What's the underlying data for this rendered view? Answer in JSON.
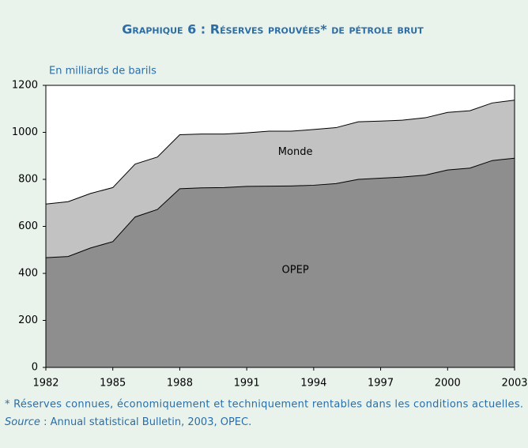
{
  "chart_data": {
    "type": "area",
    "title": "Graphique 6 : Réserves prouvées* de pétrole brut",
    "y_label": "En milliards de barils",
    "x": [
      1982,
      1983,
      1984,
      1985,
      1986,
      1987,
      1988,
      1989,
      1990,
      1991,
      1992,
      1993,
      1994,
      1995,
      1996,
      1997,
      1998,
      1999,
      2000,
      2001,
      2002,
      2003
    ],
    "series": [
      {
        "name": "Monde",
        "color": "#c2c2c2",
        "values": [
          695,
          705,
          740,
          765,
          865,
          895,
          990,
          993,
          993,
          998,
          1005,
          1005,
          1012,
          1020,
          1045,
          1048,
          1052,
          1062,
          1085,
          1092,
          1125,
          1137
        ]
      },
      {
        "name": "OPEP",
        "color": "#8e8e8e",
        "values": [
          467,
          472,
          508,
          535,
          640,
          672,
          760,
          764,
          765,
          770,
          771,
          772,
          775,
          782,
          800,
          805,
          810,
          818,
          840,
          848,
          880,
          890
        ]
      }
    ],
    "xlim": [
      1982,
      2003
    ],
    "xticks": [
      1982,
      1985,
      1988,
      1991,
      1994,
      1997,
      2000,
      2003
    ],
    "ylim": [
      0,
      1200
    ],
    "yticks": [
      0,
      200,
      400,
      600,
      800,
      1000,
      1200
    ],
    "footnote": "* Réserves connues, économiquement et techniquement rentables dans les conditions actuelles.",
    "source_label": "Source",
    "source_text": ": Annual statistical Bulletin, 2003, OPEC."
  }
}
